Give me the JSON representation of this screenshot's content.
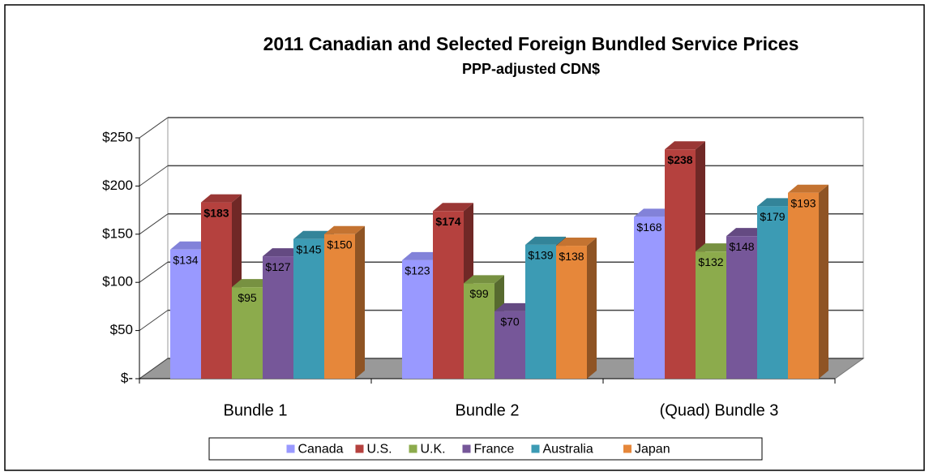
{
  "chart_data": {
    "type": "bar3d",
    "title": "2011 Canadian and Selected Foreign Bundled Service Prices",
    "subtitle": "PPP-adjusted CDN$",
    "categories": [
      "Bundle 1",
      "Bundle 2",
      "(Quad) Bundle 3"
    ],
    "series": [
      {
        "name": "Canada",
        "color": "#9999ff",
        "values": [
          134,
          123,
          168
        ],
        "value_labels": [
          "$134",
          "$123",
          "$168"
        ]
      },
      {
        "name": "U.S.",
        "color": "#b5413e",
        "values": [
          183,
          174,
          238
        ],
        "value_labels": [
          "$183",
          "$174",
          "$238"
        ],
        "bold_labels": true
      },
      {
        "name": "U.K.",
        "color": "#8cab4c",
        "values": [
          95,
          99,
          132
        ],
        "value_labels": [
          "$95",
          "$99",
          "$132"
        ]
      },
      {
        "name": "France",
        "color": "#765799",
        "values": [
          127,
          70,
          148
        ],
        "value_labels": [
          "$127",
          "$70",
          "$148"
        ]
      },
      {
        "name": "Australia",
        "color": "#3c9bb4",
        "values": [
          145,
          139,
          179
        ],
        "value_labels": [
          "$145",
          "$139",
          "$179"
        ]
      },
      {
        "name": "Japan",
        "color": "#e6873a",
        "values": [
          150,
          138,
          193
        ],
        "value_labels": [
          "$150",
          "$138",
          "$193"
        ]
      }
    ],
    "ylim": [
      0,
      250
    ],
    "yticks": [
      {
        "value": 0,
        "label": "$-"
      },
      {
        "value": 50,
        "label": "$50"
      },
      {
        "value": 100,
        "label": "$100"
      },
      {
        "value": 150,
        "label": "$150"
      },
      {
        "value": 200,
        "label": "$200"
      },
      {
        "value": 250,
        "label": "$250"
      }
    ],
    "grid": true,
    "legend": "bottom"
  }
}
